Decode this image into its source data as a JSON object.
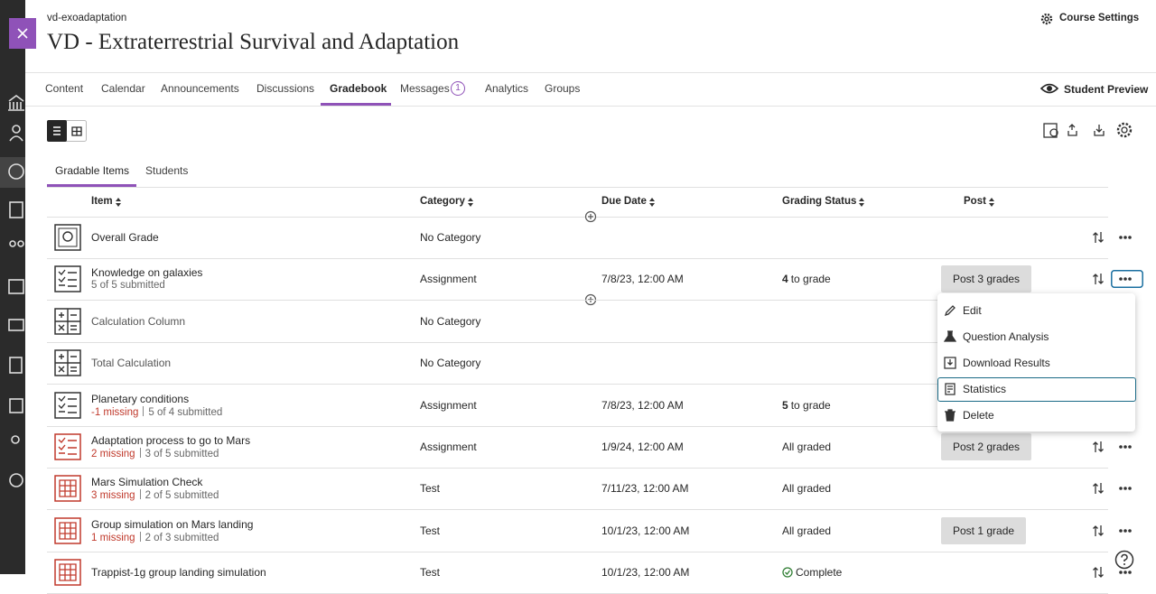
{
  "header": {
    "course_code": "vd-exoadaptation",
    "course_title": "VD - Extraterrestrial Survival and Adaptation",
    "course_settings": "Course Settings"
  },
  "nav": {
    "tabs": [
      {
        "label": "Content"
      },
      {
        "label": "Calendar"
      },
      {
        "label": "Announcements"
      },
      {
        "label": "Discussions"
      },
      {
        "label": "Gradebook"
      },
      {
        "label": "Messages",
        "badge": "1"
      },
      {
        "label": "Analytics"
      },
      {
        "label": "Groups"
      }
    ],
    "active": 4,
    "student_preview": "Student Preview"
  },
  "subtabs": {
    "items": [
      "Gradable Items",
      "Students"
    ],
    "active": 0
  },
  "table": {
    "columns": [
      "Item",
      "Category",
      "Due Date",
      "Grading Status",
      "Post"
    ],
    "rows": [
      {
        "name": "Overall Grade",
        "category": "No Category"
      },
      {
        "name": "Knowledge on galaxies",
        "submitted": "5 of 5 submitted",
        "category": "Assignment",
        "due": "7/8/23, 12:00 AM",
        "status_count": "4",
        "status": "to grade",
        "post": "Post 3 grades"
      },
      {
        "name": "Calculation Column",
        "category": "No Category"
      },
      {
        "name": "Total Calculation",
        "category": "No Category"
      },
      {
        "name": "Planetary conditions",
        "missing": "-1 missing",
        "submitted": "5 of 4 submitted",
        "category": "Assignment",
        "due": "7/8/23, 12:00 AM",
        "status_count": "5",
        "status": "to grade"
      },
      {
        "name": "Adaptation process to go to Mars",
        "missing": "2 missing",
        "submitted": "3 of 5 submitted",
        "category": "Assignment",
        "due": "1/9/24, 12:00 AM",
        "status": "All graded",
        "post": "Post 2 grades"
      },
      {
        "name": "Mars Simulation Check",
        "missing": "3 missing",
        "submitted": "2 of 5 submitted",
        "category": "Test",
        "due": "7/11/23, 12:00 AM",
        "status": "All graded"
      },
      {
        "name": "Group simulation on Mars landing",
        "missing": "1 missing",
        "submitted": "2 of 3 submitted",
        "category": "Test",
        "due": "10/1/23, 12:00 AM",
        "status": "All graded",
        "post": "Post 1 grade"
      },
      {
        "name": "Trappist-1g group landing simulation",
        "category": "Test",
        "due": "10/1/23, 12:00 AM",
        "status": "Complete"
      }
    ]
  },
  "menu": {
    "items": [
      "Edit",
      "Question Analysis",
      "Download Results",
      "Statistics",
      "Delete"
    ],
    "focused": 3
  }
}
